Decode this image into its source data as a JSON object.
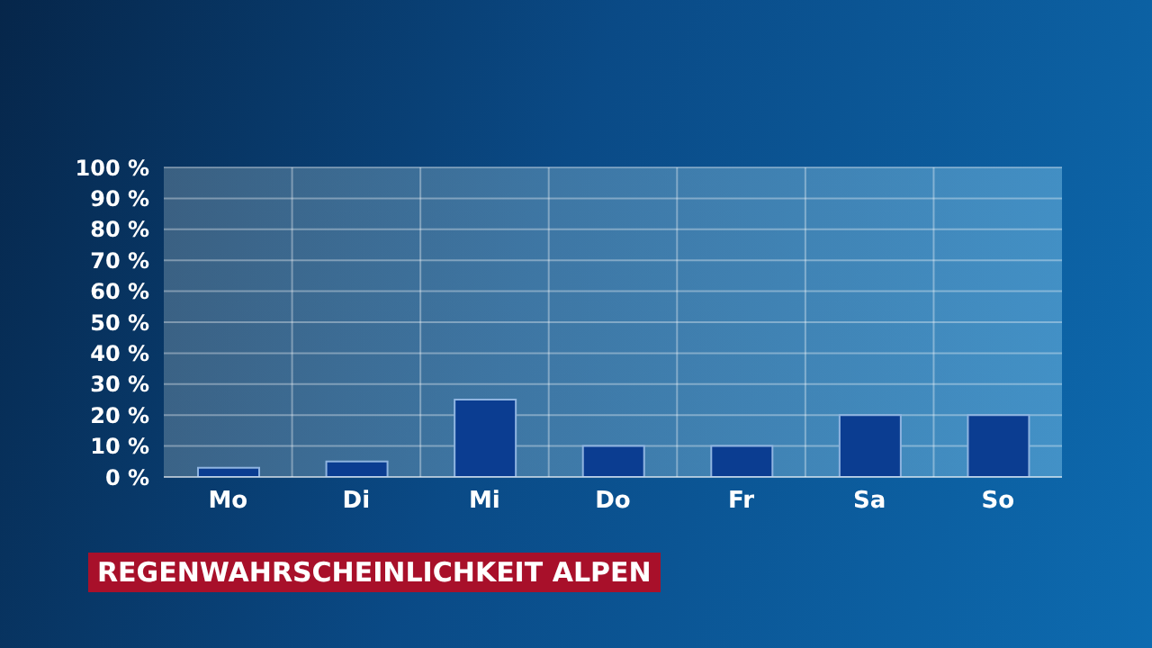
{
  "chart_data": {
    "type": "bar",
    "title": "REGENWAHRSCHEINLICHKEIT ALPEN",
    "categories": [
      "Mo",
      "Di",
      "Mi",
      "Do",
      "Fr",
      "Sa",
      "So"
    ],
    "values": [
      3,
      5,
      25,
      10,
      10,
      20,
      20
    ],
    "color": "#0b3d91",
    "ylim": [
      0,
      100
    ],
    "yticks": [
      {
        "value": 0,
        "label": "0 %"
      },
      {
        "value": 10,
        "label": "10 %"
      },
      {
        "value": 20,
        "label": "20 %"
      },
      {
        "value": 30,
        "label": "30 %"
      },
      {
        "value": 40,
        "label": "40 %"
      },
      {
        "value": 50,
        "label": "50 %"
      },
      {
        "value": 60,
        "label": "60 %"
      },
      {
        "value": 70,
        "label": "70 %"
      },
      {
        "value": 80,
        "label": "80 %"
      },
      {
        "value": 90,
        "label": "90 %"
      },
      {
        "value": 100,
        "label": "100 %"
      }
    ],
    "grid": true
  }
}
